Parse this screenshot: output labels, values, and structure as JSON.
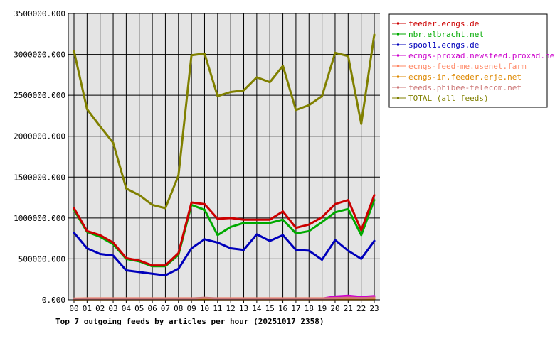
{
  "chart_data": {
    "type": "line",
    "title": "Top 7 outgoing feeds by articles per hour (20251017 2358)",
    "xlabel": "",
    "ylabel": "",
    "ylim": [
      0,
      3500000
    ],
    "grid": true,
    "legend_position": "right",
    "x": [
      "00",
      "01",
      "02",
      "03",
      "04",
      "05",
      "06",
      "07",
      "08",
      "09",
      "10",
      "11",
      "12",
      "13",
      "14",
      "15",
      "16",
      "17",
      "18",
      "19",
      "20",
      "21",
      "22",
      "23"
    ],
    "y_ticks": [
      0,
      500000,
      1000000,
      1500000,
      2000000,
      2500000,
      3000000,
      3500000
    ],
    "y_tick_labels": [
      "0.000",
      "500000.000",
      "1000000.000",
      "1500000.000",
      "2000000.000",
      "2500000.000",
      "3000000.000",
      "3500000.000"
    ],
    "series": [
      {
        "name": "feeder.ecngs.de",
        "color": "#cc0000",
        "values": [
          1120000,
          840000,
          790000,
          700000,
          510000,
          480000,
          420000,
          420000,
          570000,
          1190000,
          1170000,
          990000,
          1000000,
          980000,
          980000,
          980000,
          1080000,
          880000,
          920000,
          1010000,
          1170000,
          1220000,
          850000,
          1280000
        ]
      },
      {
        "name": "nbr.elbracht.net",
        "color": "#00aa00",
        "values": [
          1100000,
          830000,
          770000,
          680000,
          500000,
          470000,
          410000,
          410000,
          550000,
          1160000,
          1100000,
          790000,
          890000,
          940000,
          940000,
          940000,
          980000,
          810000,
          840000,
          950000,
          1070000,
          1110000,
          790000,
          1220000
        ]
      },
      {
        "name": "spool1.ecngs.de",
        "color": "#0000bb",
        "values": [
          820000,
          630000,
          560000,
          540000,
          360000,
          340000,
          320000,
          300000,
          380000,
          630000,
          740000,
          700000,
          630000,
          610000,
          800000,
          720000,
          790000,
          610000,
          600000,
          490000,
          730000,
          600000,
          500000,
          720000
        ]
      },
      {
        "name": "ecngs-proxad.newsfeed.proxad.net",
        "color": "#cc00cc",
        "values": [
          8000,
          10000,
          10000,
          10000,
          10000,
          10000,
          10000,
          10000,
          10000,
          10000,
          12000,
          10000,
          10000,
          10000,
          10000,
          10000,
          10000,
          10000,
          12000,
          15000,
          40000,
          50000,
          35000,
          45000
        ]
      },
      {
        "name": "ecngs-feed-me.usenet.farm",
        "color": "#ff8866",
        "values": [
          15000,
          18000,
          18000,
          18000,
          18000,
          18000,
          18000,
          18000,
          18000,
          18000,
          20000,
          18000,
          18000,
          18000,
          18000,
          18000,
          18000,
          18000,
          18000,
          18000,
          20000,
          25000,
          20000,
          25000
        ]
      },
      {
        "name": "ecngs-in.feeder.erje.net",
        "color": "#dd8800",
        "values": [
          5000,
          6000,
          6000,
          6000,
          6000,
          6000,
          6000,
          6000,
          6000,
          6000,
          6000,
          6000,
          6000,
          6000,
          6000,
          6000,
          6000,
          6000,
          6000,
          6000,
          6000,
          6000,
          6000,
          6000
        ]
      },
      {
        "name": "feeds.phibee-telecom.net",
        "color": "#cc7777",
        "values": [
          10000,
          15000,
          15000,
          15000,
          15000,
          15000,
          15000,
          15000,
          15000,
          15000,
          25000,
          15000,
          15000,
          15000,
          15000,
          15000,
          15000,
          15000,
          15000,
          15000,
          20000,
          25000,
          20000,
          25000
        ]
      },
      {
        "name": "TOTAL (all feeds)",
        "color": "#808000",
        "values": [
          3040000,
          2330000,
          2120000,
          1920000,
          1360000,
          1280000,
          1160000,
          1120000,
          1520000,
          2990000,
          3010000,
          2490000,
          2540000,
          2560000,
          2720000,
          2660000,
          2860000,
          2320000,
          2380000,
          2490000,
          3020000,
          2980000,
          2150000,
          3240000
        ]
      }
    ]
  }
}
